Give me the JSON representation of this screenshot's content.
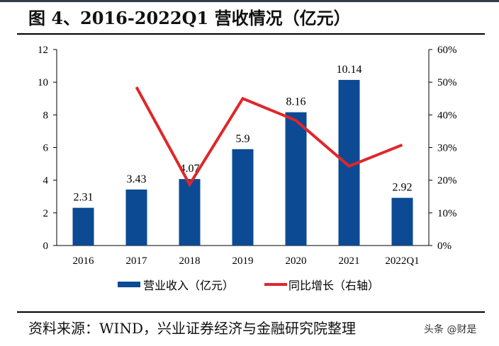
{
  "title": "图 4、2016-2022Q1 营收情况（亿元）",
  "source": "资料来源：WIND，兴业证券经济与金融研究院整理",
  "watermark": "头条 @财是",
  "chart_data": {
    "type": "bar+line",
    "categories": [
      "2016",
      "2017",
      "2018",
      "2019",
      "2020",
      "2021",
      "2022Q1"
    ],
    "series": [
      {
        "name": "营业收入（亿元）",
        "type": "bar",
        "axis": "left",
        "color": "#0c4a94",
        "values": [
          2.31,
          3.43,
          4.07,
          5.9,
          8.16,
          10.14,
          2.92
        ],
        "labels": [
          "2.31",
          "3.43",
          "4.07",
          "5.9",
          "8.16",
          "10.14",
          "2.92"
        ]
      },
      {
        "name": "同比增长（右轴）",
        "type": "line",
        "axis": "right",
        "color": "#e0262a",
        "values": [
          null,
          48.5,
          18.7,
          45.0,
          38.3,
          24.3,
          30.8
        ]
      }
    ],
    "ylim_left": [
      0,
      12
    ],
    "yticks_left": [
      "0",
      "2",
      "4",
      "6",
      "8",
      "10",
      "12"
    ],
    "ylim_right": [
      0,
      60
    ],
    "yticks_right": [
      "0%",
      "10%",
      "20%",
      "30%",
      "40%",
      "50%",
      "60%"
    ],
    "grid": false,
    "legend": "bottom"
  }
}
